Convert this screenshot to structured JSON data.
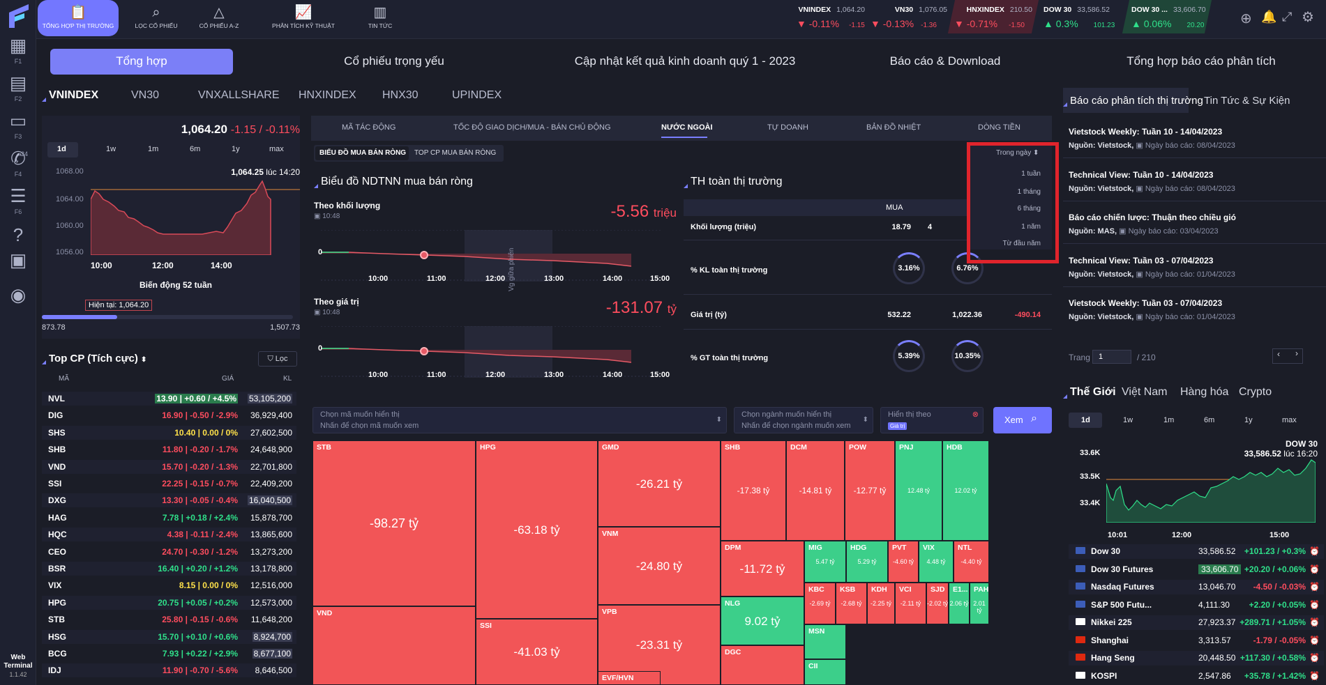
{
  "app": {
    "version": "1.1.42",
    "web_label": "Web",
    "terminal_label": "Terminal"
  },
  "sidebar": [
    {
      "icon": "dashboard-icon",
      "key": "F1"
    },
    {
      "icon": "inbox-icon",
      "key": "F2"
    },
    {
      "icon": "chat-icon",
      "key": "F3"
    },
    {
      "icon": "phone-icon",
      "key": "F4",
      "badge": "24"
    },
    {
      "icon": "message-icon",
      "key": "F6"
    },
    {
      "icon": "help-icon",
      "key": ""
    },
    {
      "icon": "book-icon",
      "key": ""
    },
    {
      "icon": "user-icon",
      "key": ""
    }
  ],
  "nav": [
    {
      "label": "TỔNG HỢP THỊ TRƯỜNG",
      "icon": "clipboard-icon"
    },
    {
      "label": "LỌC CỔ PHIẾU",
      "icon": "search-icon"
    },
    {
      "label": "CỔ PHIẾU A-Z",
      "icon": "shapes-icon"
    },
    {
      "label": "PHÂN TÍCH KỸ THUẬT",
      "icon": "chart-icon"
    },
    {
      "label": "TIN TỨC",
      "icon": "news-icon"
    }
  ],
  "indices": [
    {
      "name": "VNINDEX",
      "value": "1,064.20",
      "pct": "-0.11%",
      "chg": "-1.15",
      "dir": "down"
    },
    {
      "name": "VN30",
      "value": "1,076.05",
      "pct": "-0.13%",
      "chg": "-1.36",
      "dir": "down"
    },
    {
      "name": "HNXINDEX",
      "value": "210.50",
      "pct": "-0.71%",
      "chg": "-1.50",
      "dir": "down"
    },
    {
      "name": "DOW 30",
      "value": "33,586.52",
      "pct": "0.3%",
      "chg": "101.23",
      "dir": "up"
    },
    {
      "name": "DOW 30 ...",
      "value": "33,606.70",
      "pct": "0.06%",
      "chg": "20.20",
      "dir": "up"
    }
  ],
  "main_tabs": [
    "Tổng hợp",
    "Cổ phiếu trọng yếu",
    "Cập nhật kết quả kinh doanh quý 1 - 2023",
    "Báo cáo & Download",
    "Tổng hợp báo cáo phân tích"
  ],
  "index_tabs": [
    "VNINDEX",
    "VN30",
    "VNXALLSHARE",
    "HNXINDEX",
    "HNX30",
    "UPINDEX"
  ],
  "vnindex": {
    "value": "1,064.20",
    "change": "-1.15 / -0.11%",
    "periods": [
      "1d",
      "1w",
      "1m",
      "6m",
      "1y",
      "max"
    ],
    "last": "1,064.25",
    "last_time": "lúc 14:20",
    "y_ticks": [
      "1068.00",
      "1064.00",
      "1060.00",
      "1056.00"
    ],
    "x_ticks": [
      "10:00",
      "12:00",
      "14:00"
    ],
    "week52_label": "Biến động 52 tuần",
    "current_label": "Hiện tại: 1,064.20",
    "low": "873.78",
    "high": "1,507.73",
    "week52_position": 0.3
  },
  "top_cp": {
    "title": "Top CP (Tích cực)",
    "filter": "Lọc",
    "cols": [
      "MÃ",
      "GIÁ",
      "KL"
    ],
    "rows": [
      [
        "NVL",
        "13.90 | +0.60 / +4.5%",
        "53,105,200",
        "up"
      ],
      [
        "DIG",
        "16.90 | -0.50 / -2.9%",
        "36,929,400",
        "down"
      ],
      [
        "SHS",
        "10.40 | 0.00 / 0%",
        "27,602,500",
        "flat"
      ],
      [
        "SHB",
        "11.80 | -0.20 / -1.7%",
        "24,648,900",
        "down"
      ],
      [
        "VND",
        "15.70 | -0.20 / -1.3%",
        "22,701,800",
        "down"
      ],
      [
        "SSI",
        "22.25 | -0.15 / -0.7%",
        "22,409,200",
        "down"
      ],
      [
        "DXG",
        "13.30 | -0.05 / -0.4%",
        "16,040,500",
        "down"
      ],
      [
        "HAG",
        "7.78 | +0.18 / +2.4%",
        "15,878,700",
        "up"
      ],
      [
        "HQC",
        "4.38 | -0.11 / -2.4%",
        "13,865,600",
        "down"
      ],
      [
        "CEO",
        "24.70 | -0.30 / -1.2%",
        "13,273,200",
        "down"
      ],
      [
        "BSR",
        "16.40 | +0.20 / +1.2%",
        "13,178,800",
        "up"
      ],
      [
        "VIX",
        "8.15 | 0.00 / 0%",
        "12,516,000",
        "flat"
      ],
      [
        "HPG",
        "20.75 | +0.05 / +0.2%",
        "12,573,000",
        "up"
      ],
      [
        "STB",
        "25.80 | -0.15 / -0.6%",
        "11,648,200",
        "down"
      ],
      [
        "HSG",
        "15.70 | +0.10 / +0.6%",
        "8,924,700",
        "up"
      ],
      [
        "BCG",
        "7.93 | +0.22 / +2.9%",
        "8,677,100",
        "up"
      ],
      [
        "IDJ",
        "11.90 | -0.70 / -5.6%",
        "8,646,500",
        "down"
      ]
    ]
  },
  "center_tabs": [
    "MÃ TÁC ĐỘNG",
    "TỐC ĐỘ GIAO DỊCH/MUA - BÁN CHỦ ĐỘNG",
    "NƯỚC NGOÀI",
    "TỰ DOANH",
    "BẢN ĐỒ NHIỆT",
    "DÒNG TIỀN"
  ],
  "sub_tabs": [
    "BIỂU ĐỒ MUA BÁN RÒNG",
    "TOP CP MUA BÁN RÒNG"
  ],
  "ndtnn": {
    "title": "Biểu đồ NDTNN mua bán ròng",
    "vol_label": "Theo khối lượng",
    "vol_time": "10:48",
    "vol_value": "-5.56",
    "vol_unit": "triệu",
    "val_label": "Theo giá trị",
    "val_time": "10:48",
    "val_value": "-131.07",
    "val_unit": "tỷ",
    "break_label": "Vg giữa phiên",
    "x_ticks": [
      "10:00",
      "11:00",
      "12:00",
      "13:00",
      "14:00",
      "15:00"
    ],
    "zero": "0"
  },
  "th": {
    "title": "TH toàn thị trường",
    "col_buy": "MUA",
    "rows": [
      {
        "label": "Khối lượng (triệu)",
        "buy": "18.79",
        "sell": "4",
        "net": ""
      },
      {
        "label": "% KL toàn thị trường",
        "buy": "3.16%",
        "sell": "6.76%",
        "net": ""
      },
      {
        "label": "Giá trị (tỷ)",
        "buy": "532.22",
        "sell": "1,022.36",
        "net": "-490.14"
      },
      {
        "label": "% GT toàn thị trường",
        "buy": "5.39%",
        "sell": "10.35%",
        "net": ""
      }
    ]
  },
  "dropdown": {
    "selected": "Trong ngày",
    "options": [
      "1 tuần",
      "1 tháng",
      "6 tháng",
      "1 năm",
      "Từ đầu năm"
    ]
  },
  "filters": {
    "code_label": "Chọn mã muốn hiển thị",
    "code_placeholder": "Nhấn để chọn mã muốn xem",
    "sector_label": "Chọn ngành muốn hiển thị",
    "sector_placeholder": "Nhấn để chọn ngành muốn xem",
    "show_by_label": "Hiển thị theo",
    "show_by_value": "Giá trị",
    "view_button": "Xem"
  },
  "heatmap": [
    {
      "code": "STB",
      "value": "-98.27 tỷ",
      "c": "red"
    },
    {
      "code": "HPG",
      "value": "-63.18 tỷ",
      "c": "red"
    },
    {
      "code": "GMD",
      "value": "-26.21 tỷ",
      "c": "red"
    },
    {
      "code": "SHB",
      "value": "-17.38 tỷ",
      "c": "red"
    },
    {
      "code": "DCM",
      "value": "-14.81 tỷ",
      "c": "red"
    },
    {
      "code": "POW",
      "value": "-12.77 tỷ",
      "c": "red"
    },
    {
      "code": "PNJ",
      "value": "12.48 tỷ",
      "c": "green"
    },
    {
      "code": "HDB",
      "value": "12.02 tỷ",
      "c": "green"
    },
    {
      "code": "VNM",
      "value": "-24.80 tỷ",
      "c": "red"
    },
    {
      "code": "DPM",
      "value": "-11.72 tỷ",
      "c": "red"
    },
    {
      "code": "MIG",
      "value": "5.47 tỷ",
      "c": "green"
    },
    {
      "code": "HDG",
      "value": "5.29 tỷ",
      "c": "green"
    },
    {
      "code": "PVT",
      "value": "-4.60 tỷ",
      "c": "red"
    },
    {
      "code": "VIX",
      "value": "4.48 tỷ",
      "c": "green"
    },
    {
      "code": "NTL",
      "value": "-4.40 tỷ",
      "c": "red"
    },
    {
      "code": "VPB",
      "value": "-23.31 tỷ",
      "c": "red"
    },
    {
      "code": "SSI",
      "value": "-41.03 tỷ",
      "c": "red"
    },
    {
      "code": "VND",
      "value": "",
      "c": "red"
    },
    {
      "code": "NLG",
      "value": "9.02 tỷ",
      "c": "green"
    },
    {
      "code": "KBC",
      "value": "-2.69 tỷ",
      "c": "red"
    },
    {
      "code": "KSB",
      "value": "-2.68 tỷ",
      "c": "red"
    },
    {
      "code": "KDH",
      "value": "-2.25 tỷ",
      "c": "red"
    },
    {
      "code": "VCI",
      "value": "-2.11 tỷ",
      "c": "red"
    },
    {
      "code": "SJD",
      "value": "-2.02 tỷ",
      "c": "red"
    },
    {
      "code": "E1...",
      "value": "2.06 tỷ",
      "c": "green"
    },
    {
      "code": "PAH",
      "value": "2.01 tỷ",
      "c": "green"
    },
    {
      "code": "DGC",
      "value": "",
      "c": "red"
    },
    {
      "code": "MSN",
      "value": "",
      "c": "green"
    },
    {
      "code": "EVF/HVN",
      "value": "",
      "c": "red"
    },
    {
      "code": "CII",
      "value": "",
      "c": "green"
    }
  ],
  "reports": {
    "tabs": [
      "Báo cáo phân tích thị trường",
      "Tin Tức & Sự Kiện"
    ],
    "items": [
      {
        "title": "Vietstock Weekly: Tuần 10 - 14/04/2023",
        "source": "Nguồn: Vietstock,",
        "date": "Ngày báo cáo: 08/04/2023"
      },
      {
        "title": "Technical View: Tuần 10 - 14/04/2023",
        "source": "Nguồn: Vietstock,",
        "date": "Ngày báo cáo: 08/04/2023"
      },
      {
        "title": "Báo cáo chiến lược: Thuận theo chiều gió",
        "source": "Nguồn: MAS,",
        "date": "Ngày báo cáo: 03/04/2023"
      },
      {
        "title": "Technical View: Tuần 03 - 07/04/2023",
        "source": "Nguồn: Vietstock,",
        "date": "Ngày báo cáo: 01/04/2023"
      },
      {
        "title": "Vietstock Weekly: Tuần 03 - 07/04/2023",
        "source": "Nguồn: Vietstock,",
        "date": "Ngày báo cáo: 01/04/2023"
      }
    ],
    "page_label": "Trang",
    "page": "1",
    "total": "/ 210"
  },
  "world": {
    "tabs": [
      "Thế Giới",
      "Việt Nam",
      "Hàng hóa",
      "Crypto"
    ],
    "periods": [
      "1d",
      "1w",
      "1m",
      "6m",
      "1y",
      "max"
    ],
    "chart_title": "DOW 30",
    "last": "33,586.52",
    "last_time": "lúc 16:20",
    "y_ticks": [
      "33.6K",
      "33.5K",
      "33.4K"
    ],
    "x_ticks": [
      "10:01",
      "12:00",
      "15:00"
    ],
    "rows": [
      {
        "flag": "us",
        "name": "Dow 30",
        "value": "33,586.52",
        "chg": "+101.23 / +0.3%",
        "dir": "up"
      },
      {
        "flag": "us",
        "name": "Dow 30 Futures",
        "value": "33,606.70",
        "chg": "+20.20 / +0.06%",
        "dir": "up"
      },
      {
        "flag": "us",
        "name": "Nasdaq Futures",
        "value": "13,046.70",
        "chg": "-4.50 / -0.03%",
        "dir": "down"
      },
      {
        "flag": "us",
        "name": "S&P 500 Futu...",
        "value": "4,111.30",
        "chg": "+2.20 / +0.05%",
        "dir": "up"
      },
      {
        "flag": "jp",
        "name": "Nikkei 225",
        "value": "27,923.37",
        "chg": "+289.71 / +1.05%",
        "dir": "up"
      },
      {
        "flag": "cn",
        "name": "Shanghai",
        "value": "3,313.57",
        "chg": "-1.79 / -0.05%",
        "dir": "down"
      },
      {
        "flag": "hk",
        "name": "Hang Seng",
        "value": "20,448.50",
        "chg": "+117.30 / +0.58%",
        "dir": "up"
      },
      {
        "flag": "kr",
        "name": "KOSPI",
        "value": "2,547.86",
        "chg": "+35.78 / +1.42%",
        "dir": "up"
      }
    ]
  }
}
